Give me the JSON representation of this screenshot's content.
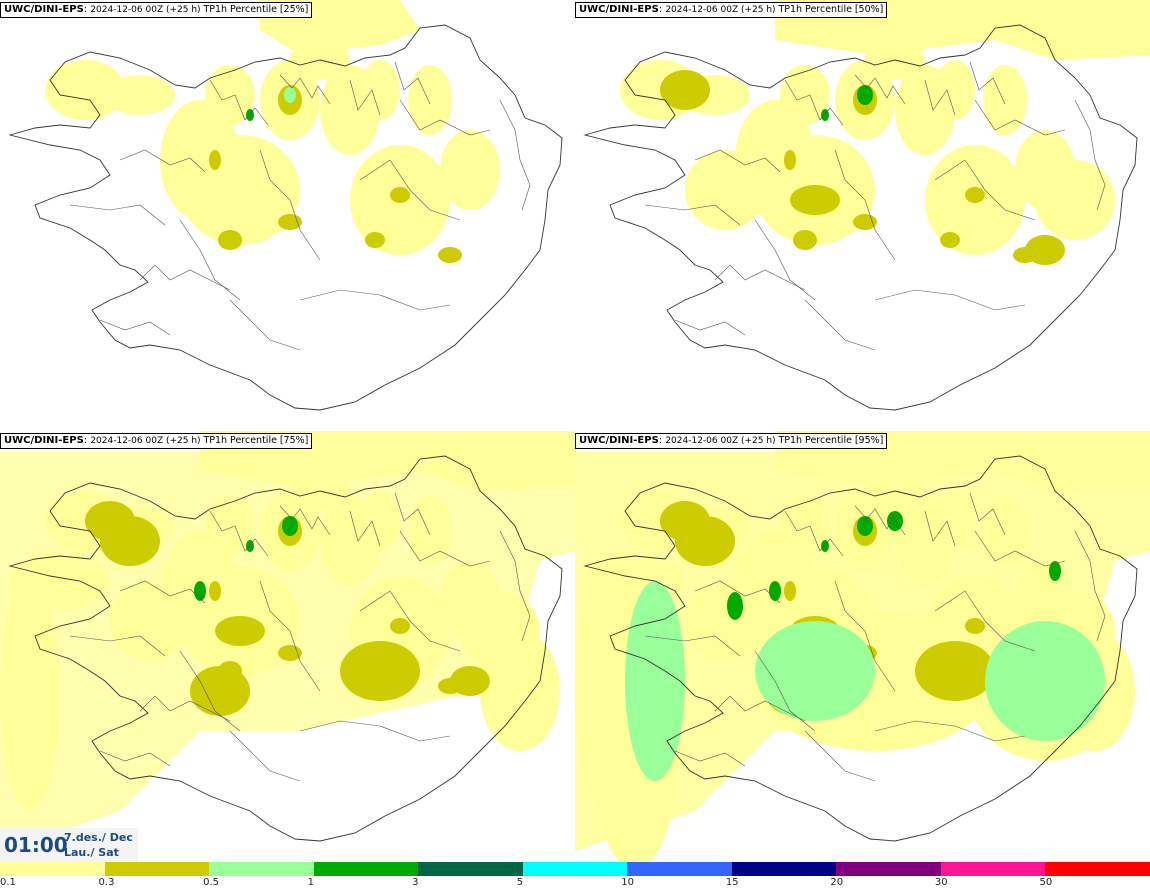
{
  "panels": [
    {
      "model": "UWC/DINI-EPS",
      "run": "2024-12-06 00Z (+25 h)",
      "param": "TP1h Percentile",
      "percentile": "[25%]",
      "intensity": 0
    },
    {
      "model": "UWC/DINI-EPS",
      "run": "2024-12-06 00Z (+25 h)",
      "param": "TP1h Percentile",
      "percentile": "[50%]",
      "intensity": 1
    },
    {
      "model": "UWC/DINI-EPS",
      "run": "2024-12-06 00Z (+25 h)",
      "param": "TP1h Percentile",
      "percentile": "[75%]",
      "intensity": 2
    },
    {
      "model": "UWC/DINI-EPS",
      "run": "2024-12-06 00Z (+25 h)",
      "param": "TP1h Percentile",
      "percentile": "[95%]",
      "intensity": 3
    }
  ],
  "time": {
    "hour": "01:00",
    "date": "7.des./ Dec",
    "day": "Lau./ Sat"
  },
  "legend": {
    "ticks": [
      "0.1",
      "0.3",
      "0.5",
      "1",
      "3",
      "5",
      "10",
      "15",
      "20",
      "30",
      "50"
    ],
    "colors": [
      "#ffff99",
      "#cccc00",
      "#99ff99",
      "#00aa00",
      "#006644",
      "#00ffff",
      "#3366ff",
      "#000080",
      "#800080",
      "#ff1493",
      "#ff0000"
    ]
  }
}
